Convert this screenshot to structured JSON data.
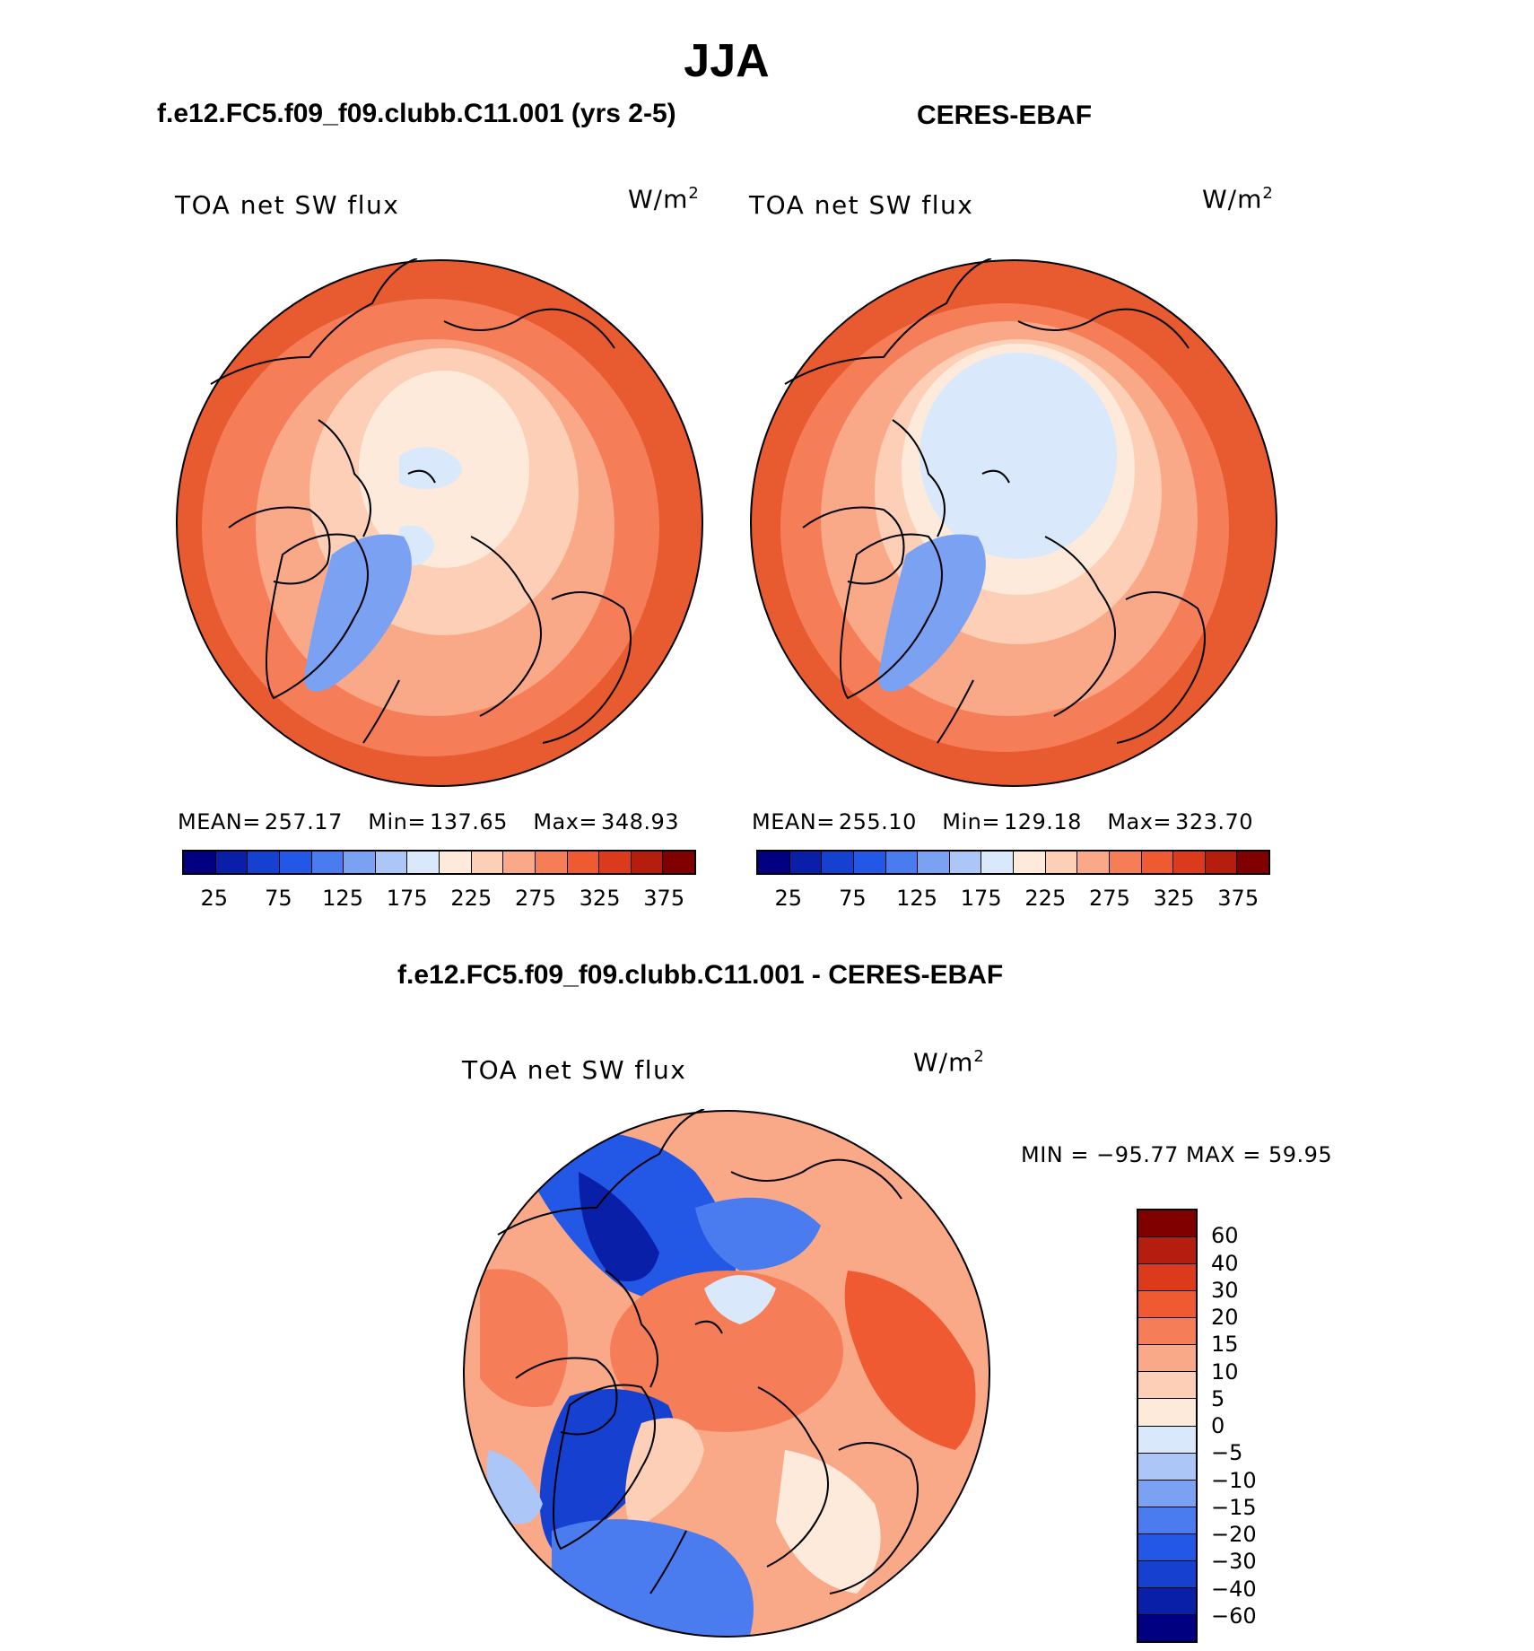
{
  "main_title": "JJA",
  "panels": [
    {
      "case_title": "f.e12.FC5.f09_f09.clubb.C11.001 (yrs 2-5)",
      "variable": "TOA net SW flux",
      "units_base": "W/m",
      "units_exp": "2",
      "stats": {
        "mean_label": "MEAN=",
        "mean": "257.17",
        "min_label": "Min=",
        "min": "137.65",
        "max_label": "Max=",
        "max": "348.93"
      }
    },
    {
      "case_title": "CERES-EBAF",
      "variable": "TOA net SW flux",
      "units_base": "W/m",
      "units_exp": "2",
      "stats": {
        "mean_label": "MEAN=",
        "mean": "255.10",
        "min_label": "Min=",
        "min": "129.18",
        "max_label": "Max=",
        "max": "323.70"
      }
    }
  ],
  "abs_colorbar": {
    "colors": [
      "#000080",
      "#0a1fa8",
      "#1540d0",
      "#2358e6",
      "#4a7bef",
      "#7ba1f3",
      "#acc6f7",
      "#d9e9fb",
      "#fdeadb",
      "#fccfb6",
      "#f9a988",
      "#f57e59",
      "#ef5a32",
      "#dc3a1c",
      "#b51d0f",
      "#800000"
    ],
    "tick_labels": [
      "25",
      "75",
      "125",
      "175",
      "225",
      "275",
      "325",
      "375"
    ]
  },
  "diff_panel": {
    "case_title": "f.e12.FC5.f09_f09.clubb.C11.001 - CERES-EBAF",
    "variable": "TOA net SW flux",
    "units_base": "W/m",
    "units_exp": "2",
    "minmax_text": "MIN = −95.77 MAX =   59.95"
  },
  "diff_colorbar": {
    "colors": [
      "#800000",
      "#b51d0f",
      "#dc3a1c",
      "#ef5a32",
      "#f57e59",
      "#f9a988",
      "#fccfb6",
      "#fdeadb",
      "#d9e9fb",
      "#acc6f7",
      "#7ba1f3",
      "#4a7bef",
      "#2358e6",
      "#1540d0",
      "#0a1fa8",
      "#000080"
    ],
    "tick_labels": [
      "60",
      "40",
      "30",
      "20",
      "15",
      "10",
      "5",
      "0",
      "−5",
      "−10",
      "−15",
      "−20",
      "−30",
      "−40",
      "−60"
    ]
  },
  "map_colors": {
    "outer": "#e85a30",
    "mid": "#f57e59",
    "inner": "#f9a988",
    "pale": "#fccfb6",
    "cream": "#fdeadb",
    "icecap": "#7ba1f3",
    "ice": "#d9e9fb",
    "coast": "#000000"
  }
}
